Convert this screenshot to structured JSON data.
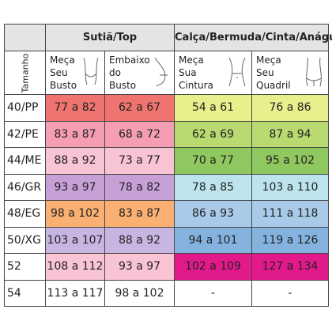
{
  "table": {
    "groups": [
      "Sutiã/Top",
      "Calça/Bermuda/Cinta/Anágua"
    ],
    "columns": [
      "Tamanho",
      "Meça Seu Busto",
      "Embaixo do Busto",
      "Meça Sua Cintura",
      "Meça Seu Quadril"
    ],
    "rows": [
      [
        "40/PP",
        "77 a 82",
        "62 a 67",
        "54 a 61",
        "76 a 86"
      ],
      [
        "42/PE",
        "83 a 87",
        "68 a 72",
        "62 a 69",
        "87 a 94"
      ],
      [
        "44/ME",
        "88 a 92",
        "73 a 77",
        "70 a 77",
        "95 a 102"
      ],
      [
        "46/GR",
        "93 a 97",
        "78 a 82",
        "78 a 85",
        "103 a 110"
      ],
      [
        "48/EG",
        "98 a 102",
        "83 a 87",
        "86 a 93",
        "111 a 118"
      ],
      [
        "50/XG",
        "103 a 107",
        "88 a 92",
        "94 a 101",
        "119 a 126"
      ],
      [
        "52",
        "108 a 112",
        "93 a 97",
        "102 a 109",
        "127 a 134"
      ],
      [
        "54",
        "113 a 117",
        "98 a 102",
        "-",
        "-"
      ]
    ]
  }
}
